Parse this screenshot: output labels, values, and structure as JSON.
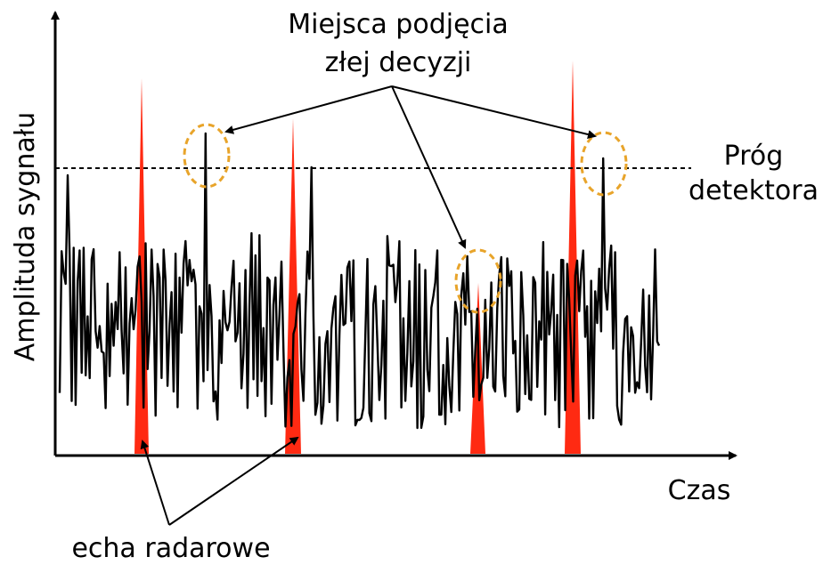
{
  "labels": {
    "false_alarm_title_line1": "Miejsca podjęcia",
    "false_alarm_title_line2": "złej decyzji",
    "threshold_line1": "Próg",
    "threshold_line2": "detektora",
    "y_axis": "Amplituda sygnału",
    "x_axis": "Czas",
    "echoes": "echa radarowe"
  },
  "colors": {
    "signal": "#000000",
    "echo": "#ff2a12",
    "highlight_circle": "#e8a42a",
    "threshold_line": "#000000"
  }
}
